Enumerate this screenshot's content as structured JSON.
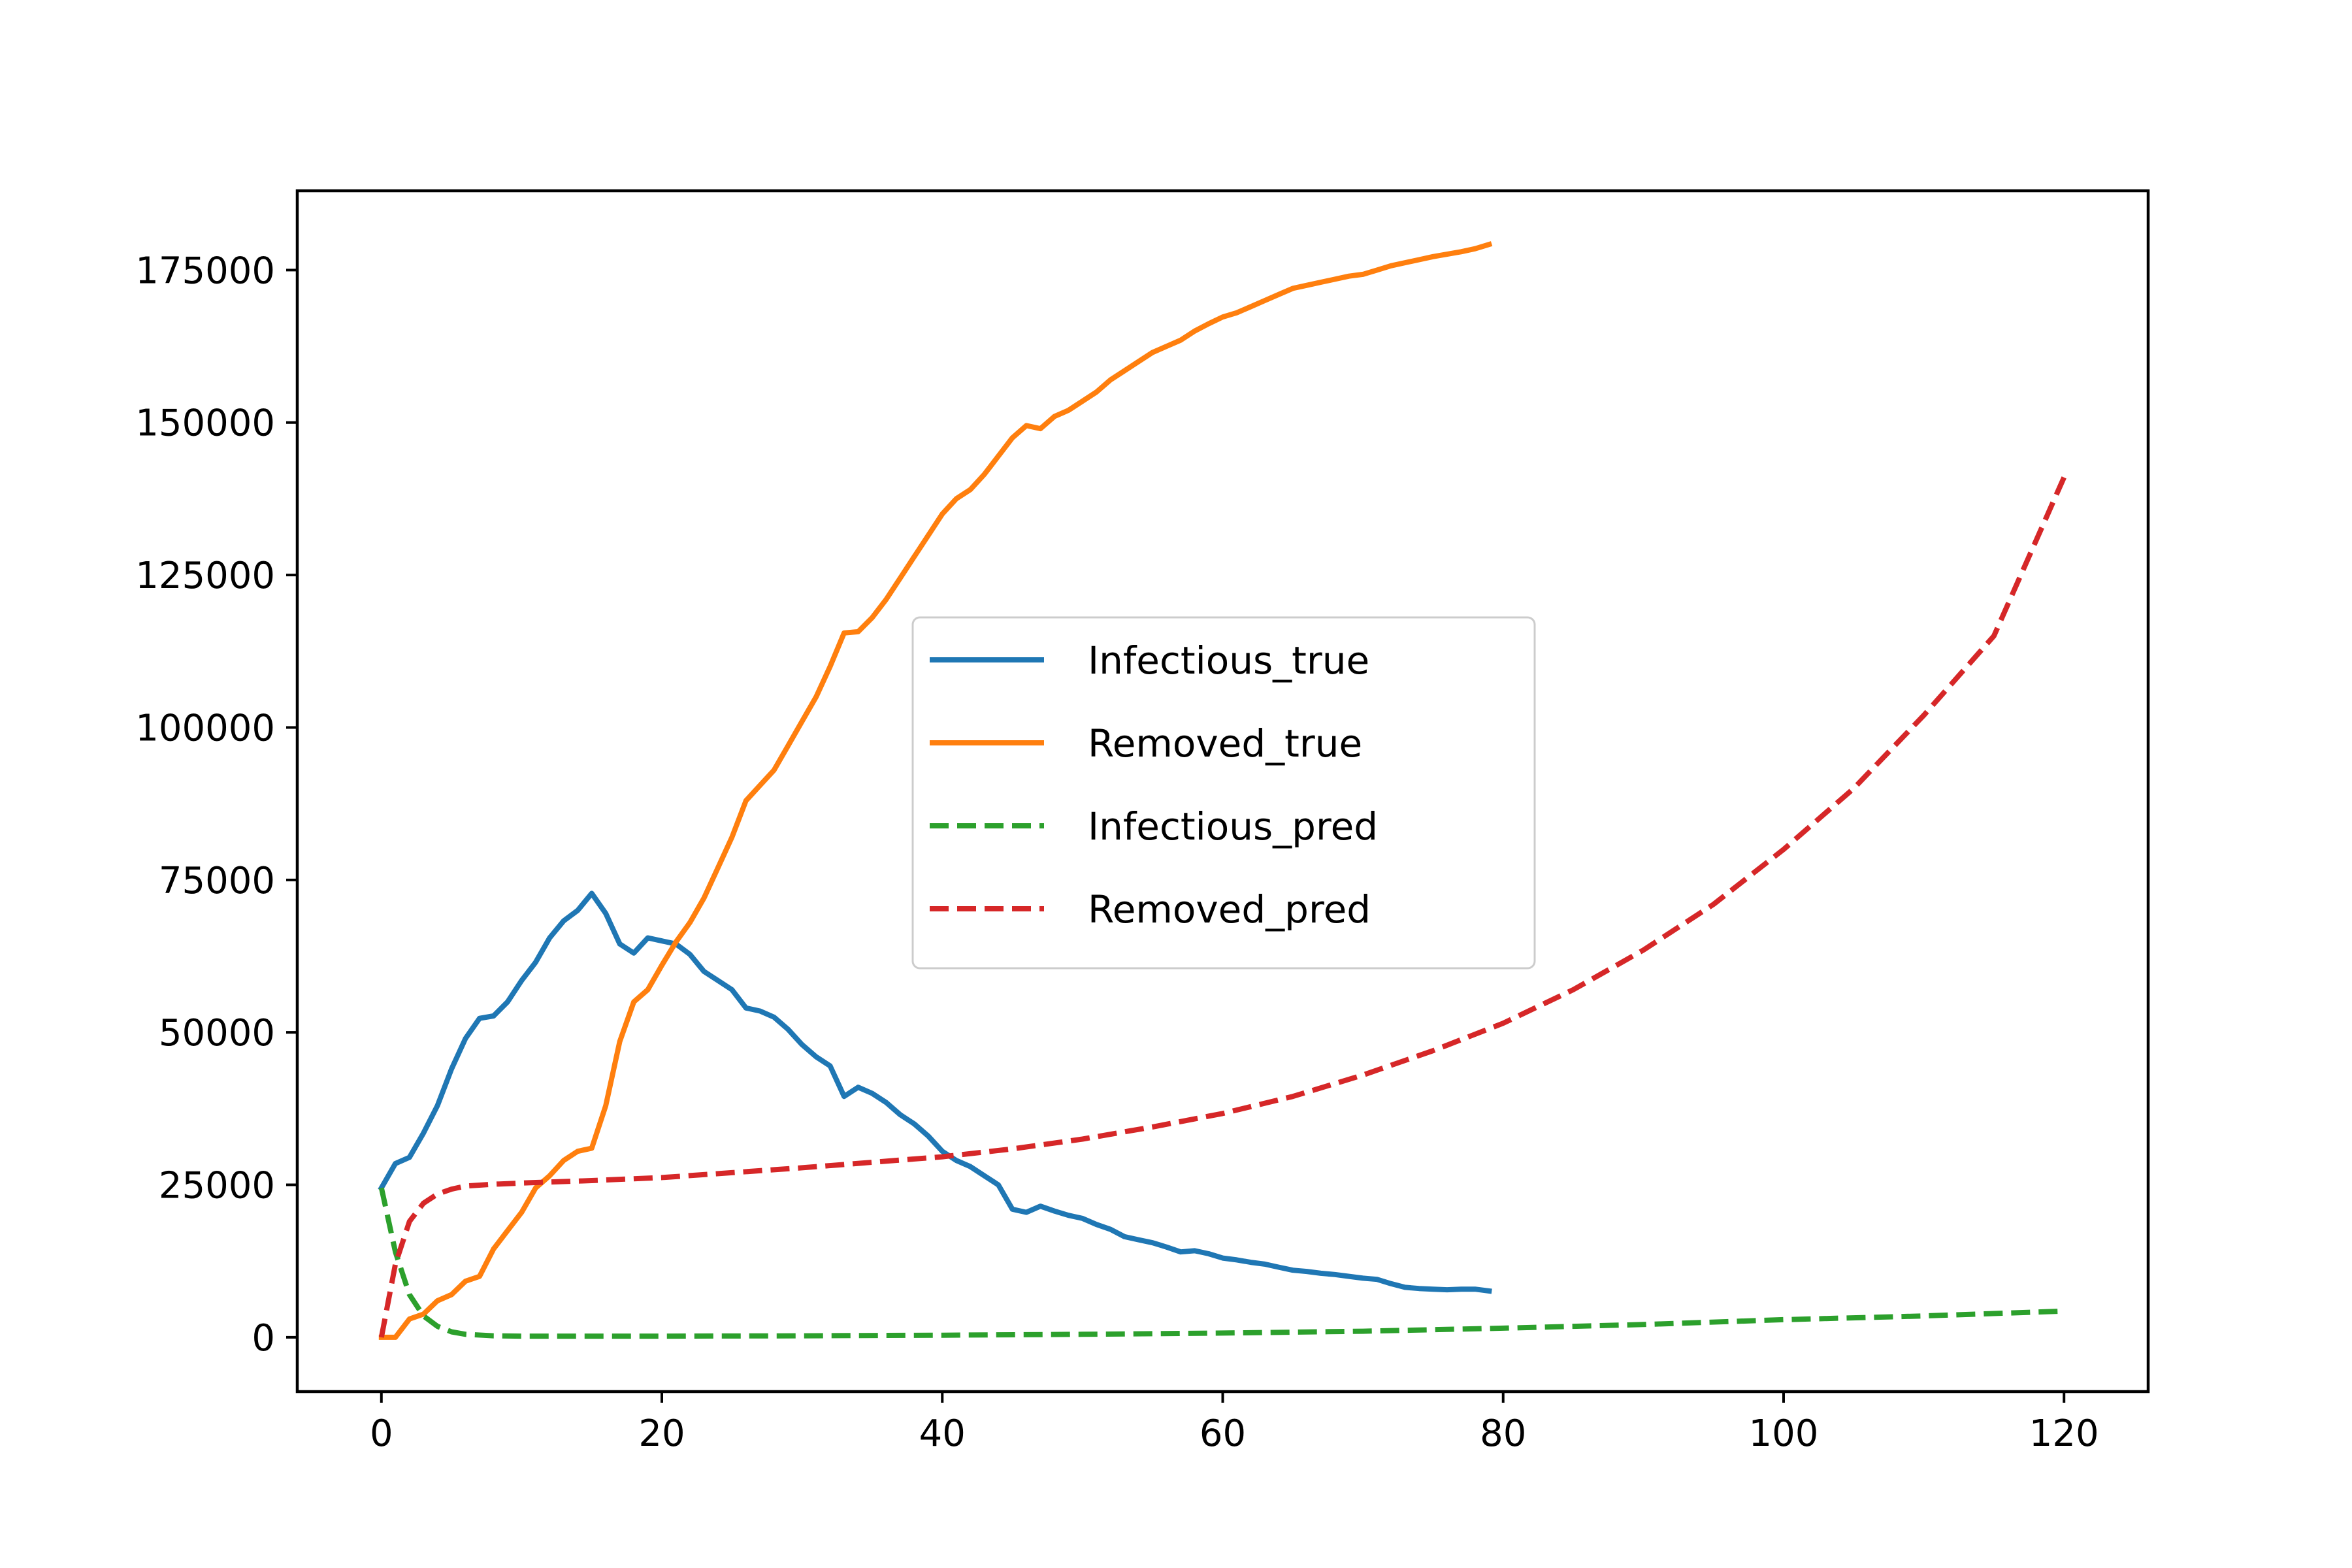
{
  "chart_data": {
    "type": "line",
    "title": "",
    "xlabel": "",
    "ylabel": "",
    "xlim": [
      -6,
      126
    ],
    "ylim": [
      -8900,
      188000
    ],
    "grid": false,
    "legend_position": "center",
    "x_ticks": [
      0,
      20,
      40,
      60,
      80,
      100,
      120
    ],
    "y_ticks": [
      0,
      25000,
      50000,
      75000,
      100000,
      125000,
      150000,
      175000
    ],
    "series": [
      {
        "name": "Infectious_true",
        "color": "#1f77b4",
        "style": "solid",
        "x": [
          0,
          1,
          2,
          3,
          4,
          5,
          6,
          7,
          8,
          9,
          10,
          11,
          12,
          13,
          14,
          15,
          16,
          17,
          18,
          19,
          20,
          21,
          22,
          23,
          24,
          25,
          26,
          27,
          28,
          29,
          30,
          31,
          32,
          33,
          34,
          35,
          36,
          37,
          38,
          39,
          40,
          41,
          42,
          43,
          44,
          45,
          46,
          47,
          48,
          49,
          50,
          51,
          52,
          53,
          54,
          55,
          56,
          57,
          58,
          59,
          60,
          61,
          62,
          63,
          64,
          65,
          66,
          67,
          68,
          69,
          70,
          71,
          72,
          73,
          74,
          75,
          76,
          77,
          78,
          79
        ],
        "y": [
          24500,
          28500,
          29500,
          33500,
          38000,
          44000,
          49000,
          52300,
          52700,
          55000,
          58500,
          61500,
          65500,
          68300,
          70000,
          72800,
          69500,
          64500,
          63000,
          65500,
          65000,
          64500,
          62800,
          60000,
          58500,
          57000,
          54000,
          53500,
          52500,
          50500,
          48000,
          46000,
          44500,
          39500,
          41000,
          40000,
          38500,
          36500,
          35000,
          33000,
          30500,
          29000,
          28000,
          26500,
          25000,
          21000,
          20500,
          21500,
          20700,
          20000,
          19500,
          18500,
          17700,
          16500,
          16000,
          15500,
          14800,
          14000,
          14200,
          13700,
          13000,
          12700,
          12300,
          12000,
          11500,
          11000,
          10800,
          10500,
          10300,
          10000,
          9700,
          9500,
          8800,
          8200,
          8000,
          7900,
          7800,
          7900,
          7900,
          7600
        ]
      },
      {
        "name": "Removed_true",
        "color": "#ff7f0e",
        "style": "solid",
        "x": [
          0,
          1,
          2,
          3,
          4,
          5,
          6,
          7,
          8,
          9,
          10,
          11,
          12,
          13,
          14,
          15,
          16,
          17,
          18,
          19,
          20,
          21,
          22,
          23,
          24,
          25,
          26,
          27,
          28,
          29,
          30,
          31,
          32,
          33,
          34,
          35,
          36,
          37,
          38,
          39,
          40,
          41,
          42,
          43,
          44,
          45,
          46,
          47,
          48,
          49,
          50,
          51,
          52,
          53,
          54,
          55,
          56,
          57,
          58,
          59,
          60,
          61,
          62,
          63,
          64,
          65,
          66,
          67,
          68,
          69,
          70,
          71,
          72,
          73,
          74,
          75,
          76,
          77,
          78,
          79
        ],
        "y": [
          0,
          0,
          3000,
          3800,
          6000,
          7000,
          9200,
          10000,
          14500,
          17500,
          20500,
          24500,
          26500,
          29000,
          30500,
          31000,
          38000,
          48500,
          55000,
          57000,
          61000,
          64800,
          68000,
          72000,
          77000,
          82000,
          88000,
          90500,
          93000,
          97000,
          101000,
          105000,
          110000,
          115500,
          115700,
          118000,
          121000,
          124500,
          128000,
          131500,
          135000,
          137500,
          139000,
          141500,
          144500,
          147500,
          149500,
          149000,
          151000,
          152000,
          153500,
          155000,
          157000,
          158500,
          160000,
          161500,
          162500,
          163500,
          165000,
          166200,
          167300,
          168000,
          169000,
          170000,
          171000,
          172000,
          172500,
          173000,
          173500,
          174000,
          174300,
          175000,
          175700,
          176200,
          176700,
          177200,
          177600,
          178000,
          178500,
          179200
        ]
      },
      {
        "name": "Infectious_pred",
        "color": "#2ca02c",
        "style": "dashed",
        "x": [
          0,
          1,
          2,
          3,
          4,
          5,
          6,
          8,
          10,
          15,
          20,
          30,
          40,
          50,
          60,
          70,
          80,
          90,
          100,
          110,
          120
        ],
        "y": [
          24500,
          14000,
          7000,
          3500,
          1800,
          900,
          500,
          250,
          200,
          200,
          200,
          250,
          350,
          500,
          700,
          1000,
          1500,
          2100,
          2900,
          3500,
          4300
        ]
      },
      {
        "name": "Removed_pred",
        "color": "#d62728",
        "style": "dashed",
        "x": [
          0,
          1,
          2,
          3,
          4,
          5,
          6,
          8,
          10,
          15,
          20,
          25,
          30,
          35,
          40,
          45,
          50,
          55,
          60,
          65,
          70,
          75,
          80,
          85,
          90,
          95,
          100,
          105,
          110,
          115,
          120
        ],
        "y": [
          0,
          12000,
          19000,
          22000,
          23500,
          24300,
          24800,
          25100,
          25300,
          25700,
          26200,
          27000,
          27800,
          28700,
          29600,
          30900,
          32500,
          34500,
          36700,
          39500,
          43000,
          47000,
          51500,
          57000,
          63500,
          71000,
          80000,
          90000,
          102000,
          115000,
          141000
        ]
      }
    ]
  }
}
